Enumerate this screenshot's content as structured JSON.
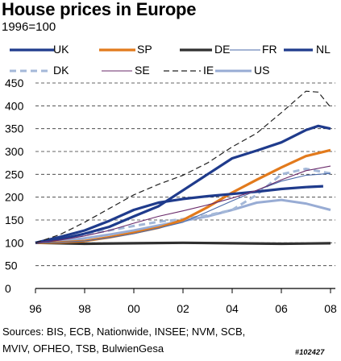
{
  "title": "House prices in Europe",
  "subtitle": "1996=100",
  "sources": [
    "Sources: BIS, ECB, Nationwide, INSEE; NVM, SCB,",
    "MVIV, OFHEO, TSB, BulwienGesa"
  ],
  "code": "#102427",
  "chart_data": {
    "type": "line",
    "title": "House prices in Europe",
    "subtitle": "1996=100",
    "xlabel": "",
    "ylabel": "",
    "x_tick_labels": [
      "96",
      "98",
      "00",
      "02",
      "04",
      "06",
      "08"
    ],
    "x_tick_values": [
      1996,
      1998,
      2000,
      2002,
      2004,
      2006,
      2008
    ],
    "y_ticks": [
      0,
      50,
      100,
      150,
      200,
      250,
      300,
      350,
      400,
      450
    ],
    "xlim": [
      1996,
      2008
    ],
    "ylim": [
      0,
      450
    ],
    "grid": "horizontal dashed",
    "legend_position": "top",
    "series": [
      {
        "name": "UK",
        "color": "#1f3b8c",
        "width": 3.2,
        "dash": "",
        "points": [
          [
            1996,
            100
          ],
          [
            1997,
            108
          ],
          [
            1998,
            120
          ],
          [
            1999,
            135
          ],
          [
            2000,
            158
          ],
          [
            2001,
            180
          ],
          [
            2002,
            215
          ],
          [
            2003,
            250
          ],
          [
            2004,
            285
          ],
          [
            2005,
            302
          ],
          [
            2006,
            320
          ],
          [
            2007,
            347
          ],
          [
            2007.5,
            356
          ],
          [
            2008,
            350
          ]
        ]
      },
      {
        "name": "SP",
        "color": "#e27a1c",
        "width": 3.2,
        "dash": "",
        "points": [
          [
            1996,
            100
          ],
          [
            1997,
            101
          ],
          [
            1998,
            104
          ],
          [
            1999,
            112
          ],
          [
            2000,
            122
          ],
          [
            2001,
            133
          ],
          [
            2002,
            150
          ],
          [
            2003,
            178
          ],
          [
            2004,
            210
          ],
          [
            2005,
            238
          ],
          [
            2006,
            265
          ],
          [
            2007,
            290
          ],
          [
            2008,
            303
          ]
        ]
      },
      {
        "name": "DE",
        "color": "#303030",
        "width": 3.2,
        "dash": "",
        "points": [
          [
            1996,
            100
          ],
          [
            1998,
            98
          ],
          [
            2000,
            99
          ],
          [
            2002,
            100
          ],
          [
            2004,
            99
          ],
          [
            2006,
            98
          ],
          [
            2008,
            99
          ]
        ]
      },
      {
        "name": "FR",
        "color": "#4a6aa8",
        "width": 1.1,
        "dash": "",
        "points": [
          [
            1996,
            100
          ],
          [
            1997,
            101
          ],
          [
            1998,
            104
          ],
          [
            1999,
            111
          ],
          [
            2000,
            120
          ],
          [
            2001,
            132
          ],
          [
            2002,
            145
          ],
          [
            2003,
            168
          ],
          [
            2004,
            192
          ],
          [
            2005,
            215
          ],
          [
            2006,
            235
          ],
          [
            2007,
            248
          ],
          [
            2008,
            252
          ]
        ]
      },
      {
        "name": "NL",
        "color": "#1f3b8c",
        "width": 3.2,
        "dash": "",
        "points": [
          [
            1996,
            100
          ],
          [
            1997,
            113
          ],
          [
            1998,
            127
          ],
          [
            1999,
            148
          ],
          [
            2000,
            172
          ],
          [
            2001,
            188
          ],
          [
            2002,
            196
          ],
          [
            2003,
            202
          ],
          [
            2004,
            207
          ],
          [
            2005,
            212
          ],
          [
            2006,
            218
          ],
          [
            2007,
            222
          ],
          [
            2007.7,
            224
          ]
        ]
      },
      {
        "name": "DK",
        "color": "#a4b8d8",
        "width": 3,
        "dash": "8 5",
        "points": [
          [
            1996,
            100
          ],
          [
            1997,
            109
          ],
          [
            1998,
            118
          ],
          [
            1999,
            127
          ],
          [
            2000,
            137
          ],
          [
            2001,
            146
          ],
          [
            2002,
            152
          ],
          [
            2003,
            160
          ],
          [
            2004,
            172
          ],
          [
            2005,
            205
          ],
          [
            2006,
            250
          ],
          [
            2007,
            262
          ],
          [
            2008,
            252
          ]
        ]
      },
      {
        "name": "SE",
        "color": "#6a2a6a",
        "width": 1.1,
        "dash": "",
        "points": [
          [
            1996,
            100
          ],
          [
            1997,
            106
          ],
          [
            1998,
            115
          ],
          [
            1999,
            127
          ],
          [
            2000,
            143
          ],
          [
            2001,
            158
          ],
          [
            2002,
            170
          ],
          [
            2003,
            183
          ],
          [
            2004,
            198
          ],
          [
            2005,
            215
          ],
          [
            2006,
            238
          ],
          [
            2007,
            258
          ],
          [
            2008,
            268
          ]
        ]
      },
      {
        "name": "IE",
        "color": "#202020",
        "width": 1.2,
        "dash": "7 4",
        "points": [
          [
            1996,
            100
          ],
          [
            1997,
            118
          ],
          [
            1998,
            145
          ],
          [
            1999,
            175
          ],
          [
            2000,
            205
          ],
          [
            2001,
            228
          ],
          [
            2002,
            248
          ],
          [
            2003,
            275
          ],
          [
            2004,
            310
          ],
          [
            2005,
            340
          ],
          [
            2006,
            385
          ],
          [
            2007,
            432
          ],
          [
            2007.5,
            430
          ],
          [
            2008,
            397
          ]
        ]
      },
      {
        "name": "US",
        "color": "#98acd4",
        "width": 3,
        "dash": "",
        "points": [
          [
            1996,
            100
          ],
          [
            1997,
            104
          ],
          [
            1998,
            110
          ],
          [
            1999,
            118
          ],
          [
            2000,
            127
          ],
          [
            2001,
            138
          ],
          [
            2002,
            148
          ],
          [
            2003,
            158
          ],
          [
            2004,
            172
          ],
          [
            2005,
            188
          ],
          [
            2006,
            194
          ],
          [
            2007,
            186
          ],
          [
            2008,
            172
          ]
        ]
      }
    ]
  }
}
